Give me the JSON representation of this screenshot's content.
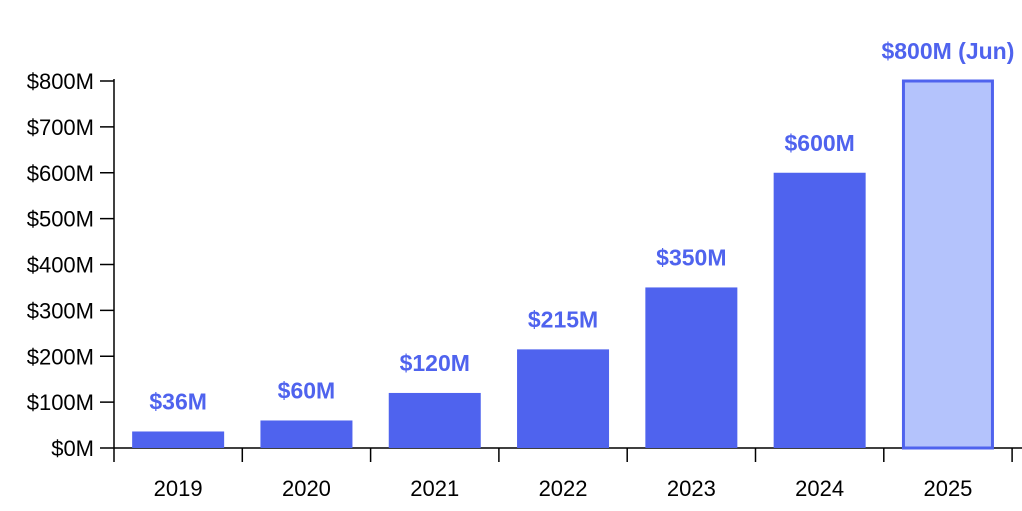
{
  "chart_data": {
    "type": "bar",
    "title": "",
    "xlabel": "",
    "ylabel": "",
    "categories": [
      "2019",
      "2020",
      "2021",
      "2022",
      "2023",
      "2024",
      "2025"
    ],
    "values": [
      36,
      60,
      120,
      215,
      350,
      600,
      800
    ],
    "data_labels": [
      "$36M",
      "$60M",
      "$120M",
      "$215M",
      "$350M",
      "$600M",
      "$800M (Jun)"
    ],
    "highlighted_category": "2025",
    "ylim": [
      0,
      800
    ],
    "y_ticks": [
      0,
      100,
      200,
      300,
      400,
      500,
      600,
      700,
      800
    ],
    "y_tick_labels": [
      "$0M",
      "$100M",
      "$200M",
      "$300M",
      "$400M",
      "$500M",
      "$600M",
      "$700M",
      "$800M"
    ],
    "grid": false,
    "legend": "none",
    "colors": {
      "bar": "#4f63ee",
      "highlight_fill": "#b4c3fc",
      "highlight_stroke": "#4f63ee",
      "data_label": "#4f63ee",
      "axis": "#000000"
    }
  }
}
